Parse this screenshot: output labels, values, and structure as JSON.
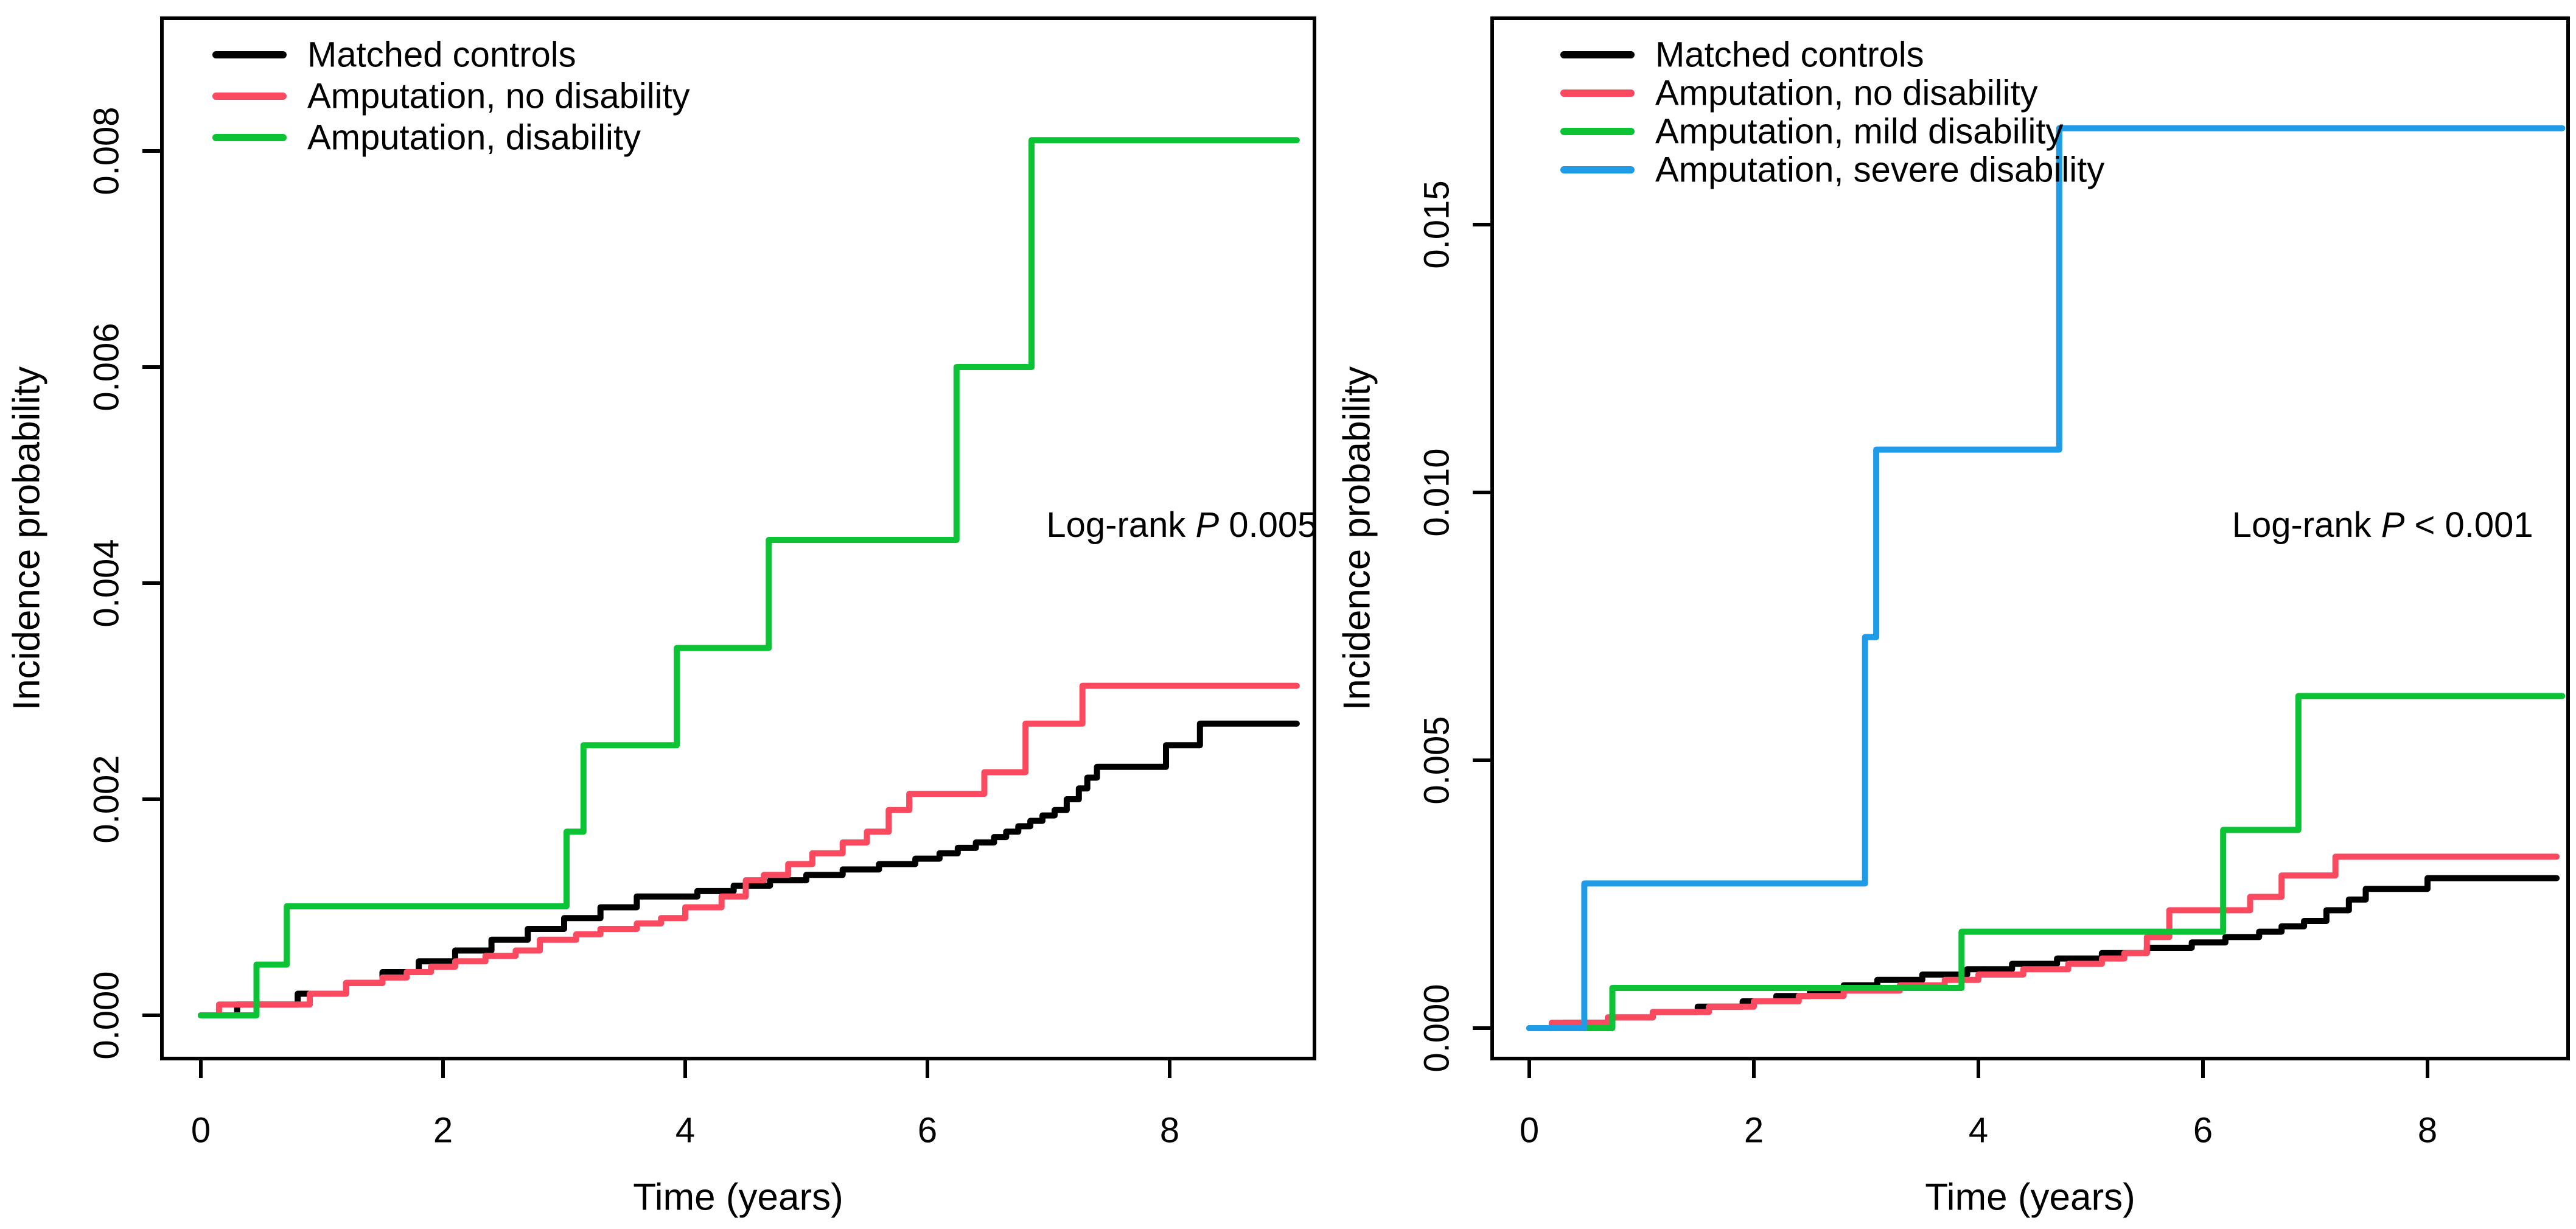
{
  "figure": {
    "description": "Two-panel step-curve figure of incidence probability over time (years)",
    "background": "#ffffff"
  },
  "chart_data": [
    {
      "panel": "left",
      "type": "line",
      "subtype": "step",
      "title": "",
      "xlabel": "Time (years)",
      "ylabel": "Incidence probability",
      "xlim": [
        -0.3,
        9.2
      ],
      "ylim": [
        0,
        0.0092
      ],
      "grid": false,
      "legend_position": "top-left",
      "x_ticks": [
        0,
        2,
        4,
        6,
        8
      ],
      "x_tick_labels": [
        "0",
        "2",
        "4",
        "6",
        "8"
      ],
      "y_tick_values": [
        0,
        0.002,
        0.004,
        0.006,
        0.008
      ],
      "y_tick_labels": [
        "0.000",
        "0.002",
        "0.004",
        "0.006",
        "0.008"
      ],
      "annotation": {
        "text": "Log-rank P 0.005",
        "prefix": "Log-rank",
        "p_italic": "P",
        "suffix": "0.005",
        "x": 8.1,
        "y": 0.00454
      },
      "series": [
        {
          "name": "Matched controls",
          "color": "#000000",
          "t_end": 9.05,
          "points": [
            [
              0,
              0
            ],
            [
              0.3,
              0.0001
            ],
            [
              0.8,
              0.0002
            ],
            [
              1.2,
              0.0003
            ],
            [
              1.5,
              0.0004
            ],
            [
              1.8,
              0.0005
            ],
            [
              2.1,
              0.0006
            ],
            [
              2.4,
              0.0007
            ],
            [
              2.7,
              0.0008
            ],
            [
              3.0,
              0.0009
            ],
            [
              3.3,
              0.001
            ],
            [
              3.6,
              0.0011
            ],
            [
              4.1,
              0.00115
            ],
            [
              4.4,
              0.0012
            ],
            [
              4.7,
              0.00125
            ],
            [
              5.0,
              0.0013
            ],
            [
              5.3,
              0.00135
            ],
            [
              5.6,
              0.0014
            ],
            [
              5.9,
              0.00145
            ],
            [
              6.1,
              0.0015
            ],
            [
              6.25,
              0.00155
            ],
            [
              6.4,
              0.0016
            ],
            [
              6.55,
              0.00165
            ],
            [
              6.65,
              0.0017
            ],
            [
              6.75,
              0.00175
            ],
            [
              6.85,
              0.0018
            ],
            [
              6.95,
              0.00185
            ],
            [
              7.05,
              0.0019
            ],
            [
              7.15,
              0.002
            ],
            [
              7.25,
              0.0021
            ],
            [
              7.32,
              0.0022
            ],
            [
              7.4,
              0.0023
            ],
            [
              7.97,
              0.0025
            ],
            [
              8.25,
              0.0027
            ]
          ]
        },
        {
          "name": "Amputation, no disability",
          "color": "#FB4A5F",
          "t_end": 9.05,
          "points": [
            [
              0,
              0
            ],
            [
              0.15,
              0.0001
            ],
            [
              0.9,
              0.0002
            ],
            [
              1.2,
              0.0003
            ],
            [
              1.5,
              0.00035
            ],
            [
              1.7,
              0.0004
            ],
            [
              1.9,
              0.00045
            ],
            [
              2.1,
              0.0005
            ],
            [
              2.35,
              0.00055
            ],
            [
              2.6,
              0.0006
            ],
            [
              2.8,
              0.0007
            ],
            [
              3.1,
              0.00075
            ],
            [
              3.3,
              0.0008
            ],
            [
              3.6,
              0.00085
            ],
            [
              3.8,
              0.0009
            ],
            [
              4.0,
              0.001
            ],
            [
              4.3,
              0.0011
            ],
            [
              4.5,
              0.00125
            ],
            [
              4.65,
              0.0013
            ],
            [
              4.85,
              0.0014
            ],
            [
              5.05,
              0.0015
            ],
            [
              5.3,
              0.0016
            ],
            [
              5.5,
              0.0017
            ],
            [
              5.68,
              0.0019
            ],
            [
              5.85,
              0.00205
            ],
            [
              6.47,
              0.00225
            ],
            [
              6.81,
              0.0027
            ],
            [
              7.28,
              0.00305
            ]
          ]
        },
        {
          "name": "Amputation, disability",
          "color": "#0BC334",
          "t_end": 9.05,
          "points": [
            [
              0,
              0
            ],
            [
              0.46,
              0.00047
            ],
            [
              0.71,
              0.00101
            ],
            [
              3.02,
              0.0017
            ],
            [
              3.16,
              0.0025
            ],
            [
              3.93,
              0.0034
            ],
            [
              4.69,
              0.0044
            ],
            [
              6.24,
              0.006
            ],
            [
              6.86,
              0.0081
            ]
          ]
        }
      ]
    },
    {
      "panel": "right",
      "type": "line",
      "subtype": "step",
      "title": "",
      "xlabel": "Time (years)",
      "ylabel": "Incidence probability",
      "xlim": [
        -0.3,
        9.3
      ],
      "ylim": [
        0,
        0.0189
      ],
      "grid": false,
      "legend_position": "top-left",
      "x_ticks": [
        0,
        2,
        4,
        6,
        8
      ],
      "x_tick_labels": [
        "0",
        "2",
        "4",
        "6",
        "8"
      ],
      "y_tick_values": [
        0,
        0.005,
        0.01,
        0.015
      ],
      "y_tick_labels": [
        "0.000",
        "0.005",
        "0.010",
        "0.015"
      ],
      "annotation": {
        "text": "Log-rank P < 0.001",
        "prefix": "Log-rank",
        "p_italic": "P",
        "suffix": "< 0.001",
        "x": 7.6,
        "y": 0.0094
      },
      "series": [
        {
          "name": "Matched controls",
          "color": "#000000",
          "t_end": 9.15,
          "points": [
            [
              0,
              0
            ],
            [
              0.3,
              0.0001
            ],
            [
              0.7,
              0.0002
            ],
            [
              1.1,
              0.0003
            ],
            [
              1.5,
              0.0004
            ],
            [
              1.9,
              0.0005
            ],
            [
              2.2,
              0.0006
            ],
            [
              2.5,
              0.0007
            ],
            [
              2.8,
              0.0008
            ],
            [
              3.1,
              0.0009
            ],
            [
              3.5,
              0.001
            ],
            [
              3.9,
              0.0011
            ],
            [
              4.3,
              0.0012
            ],
            [
              4.7,
              0.0013
            ],
            [
              5.1,
              0.0014
            ],
            [
              5.5,
              0.0015
            ],
            [
              5.9,
              0.0016
            ],
            [
              6.2,
              0.0017
            ],
            [
              6.5,
              0.0018
            ],
            [
              6.7,
              0.0019
            ],
            [
              6.9,
              0.002
            ],
            [
              7.1,
              0.0022
            ],
            [
              7.3,
              0.0024
            ],
            [
              7.45,
              0.0026
            ],
            [
              8.0,
              0.0028
            ]
          ]
        },
        {
          "name": "Amputation, no disability",
          "color": "#FB4A5F",
          "t_end": 9.15,
          "points": [
            [
              0,
              0
            ],
            [
              0.2,
              0.0001
            ],
            [
              0.7,
              0.0002
            ],
            [
              1.1,
              0.0003
            ],
            [
              1.6,
              0.0004
            ],
            [
              2.0,
              0.0005
            ],
            [
              2.4,
              0.0006
            ],
            [
              2.8,
              0.0007
            ],
            [
              3.3,
              0.0008
            ],
            [
              3.7,
              0.0009
            ],
            [
              4.0,
              0.001
            ],
            [
              4.4,
              0.0011
            ],
            [
              4.8,
              0.0012
            ],
            [
              5.1,
              0.0013
            ],
            [
              5.3,
              0.0014
            ],
            [
              5.5,
              0.0017
            ],
            [
              5.7,
              0.0022
            ],
            [
              6.42,
              0.00245
            ],
            [
              6.7,
              0.00285
            ],
            [
              7.18,
              0.0032
            ]
          ]
        },
        {
          "name": "Amputation, mild disability",
          "color": "#0BC334",
          "t_end": 9.2,
          "points": [
            [
              0,
              0
            ],
            [
              0.74,
              0.00075
            ],
            [
              3.85,
              0.0018
            ],
            [
              6.18,
              0.0037
            ],
            [
              6.85,
              0.0062
            ]
          ]
        },
        {
          "name": "Amputation, severe disability",
          "color": "#209BE8",
          "t_end": 9.2,
          "points": [
            [
              0,
              0
            ],
            [
              0.49,
              0.0027
            ],
            [
              2.99,
              0.0073
            ],
            [
              3.09,
              0.0108
            ],
            [
              4.72,
              0.0168
            ]
          ]
        }
      ]
    }
  ]
}
